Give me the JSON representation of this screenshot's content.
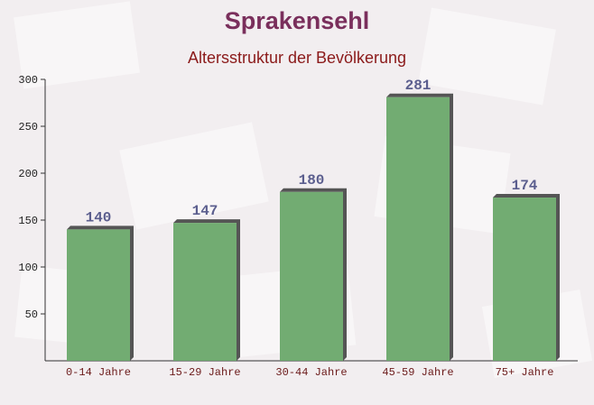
{
  "chart_data": {
    "type": "bar",
    "title": "Sprakensehl",
    "subtitle": "Altersstruktur der Bevölkerung",
    "categories": [
      "0-14 Jahre",
      "15-29 Jahre",
      "30-44 Jahre",
      "45-59 Jahre",
      "75+ Jahre"
    ],
    "values": [
      140,
      147,
      180,
      281,
      174
    ],
    "color": "#6aa86a",
    "ylim": [
      0,
      300
    ],
    "yticks": [
      50,
      100,
      150,
      200,
      250,
      300
    ]
  }
}
